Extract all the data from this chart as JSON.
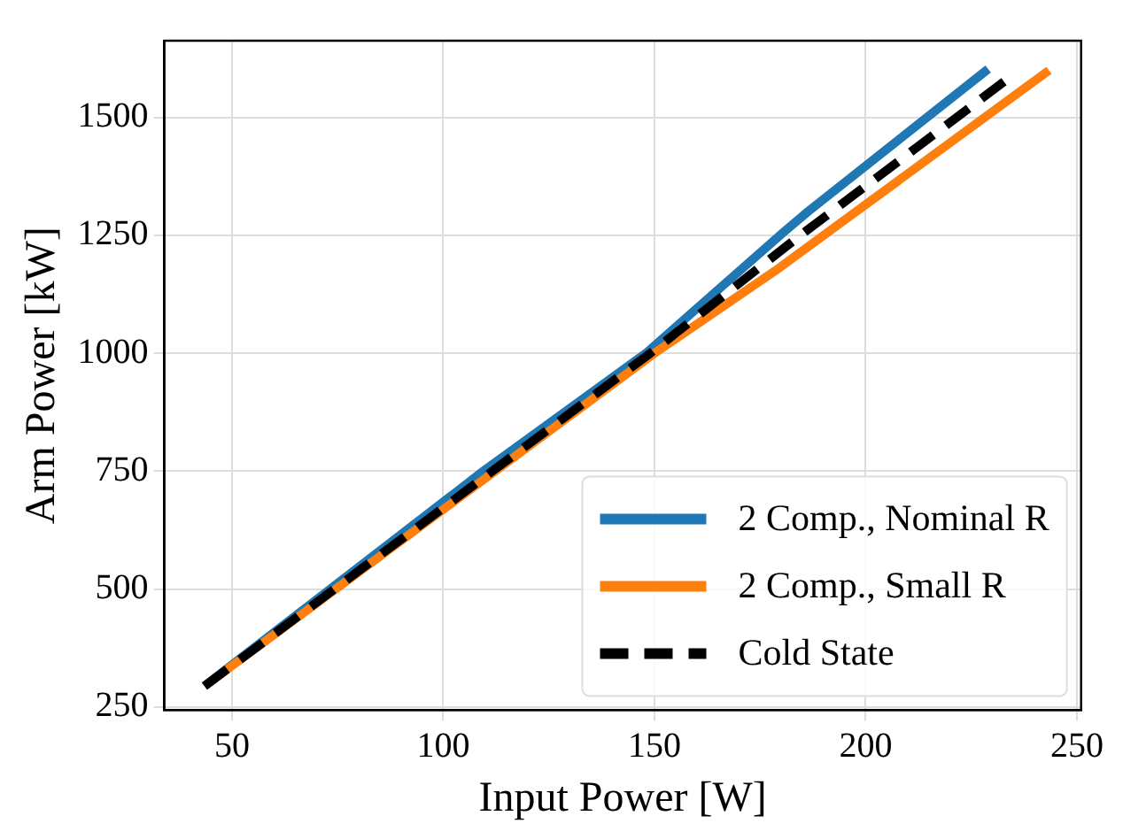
{
  "chart_data": {
    "type": "line",
    "xlabel": "Input Power [W]",
    "ylabel": "Arm Power [kW]",
    "xlim": [
      34,
      251
    ],
    "xticks": [
      50,
      100,
      150,
      200,
      250
    ],
    "ylim": [
      243,
      1663
    ],
    "yticks": [
      250,
      500,
      750,
      1000,
      1250,
      1500
    ],
    "grid": true,
    "legend": "bottom right",
    "marker": "none",
    "series": [
      {
        "name": "2 Comp., Nominal R",
        "color": "#1f77b4",
        "line_style": "solid",
        "x": [
          43.5,
          109.5,
          148,
          180.6,
          186.4,
          229
        ],
        "values": [
          294,
          750,
          1000,
          1257,
          1301,
          1603
        ]
      },
      {
        "name": "2 Comp., Small R",
        "color": "#ff7f0e",
        "line_style": "solid",
        "x": [
          43.5,
          150,
          178.6,
          243.4
        ],
        "values": [
          294,
          1000,
          1175,
          1600
        ]
      },
      {
        "name": "Cold State",
        "color": "#000000",
        "line_style": "dashed",
        "x": [
          43.5,
          149,
          184.5,
          234.8
        ],
        "values": [
          294,
          1000,
          1250,
          1590
        ]
      }
    ]
  }
}
